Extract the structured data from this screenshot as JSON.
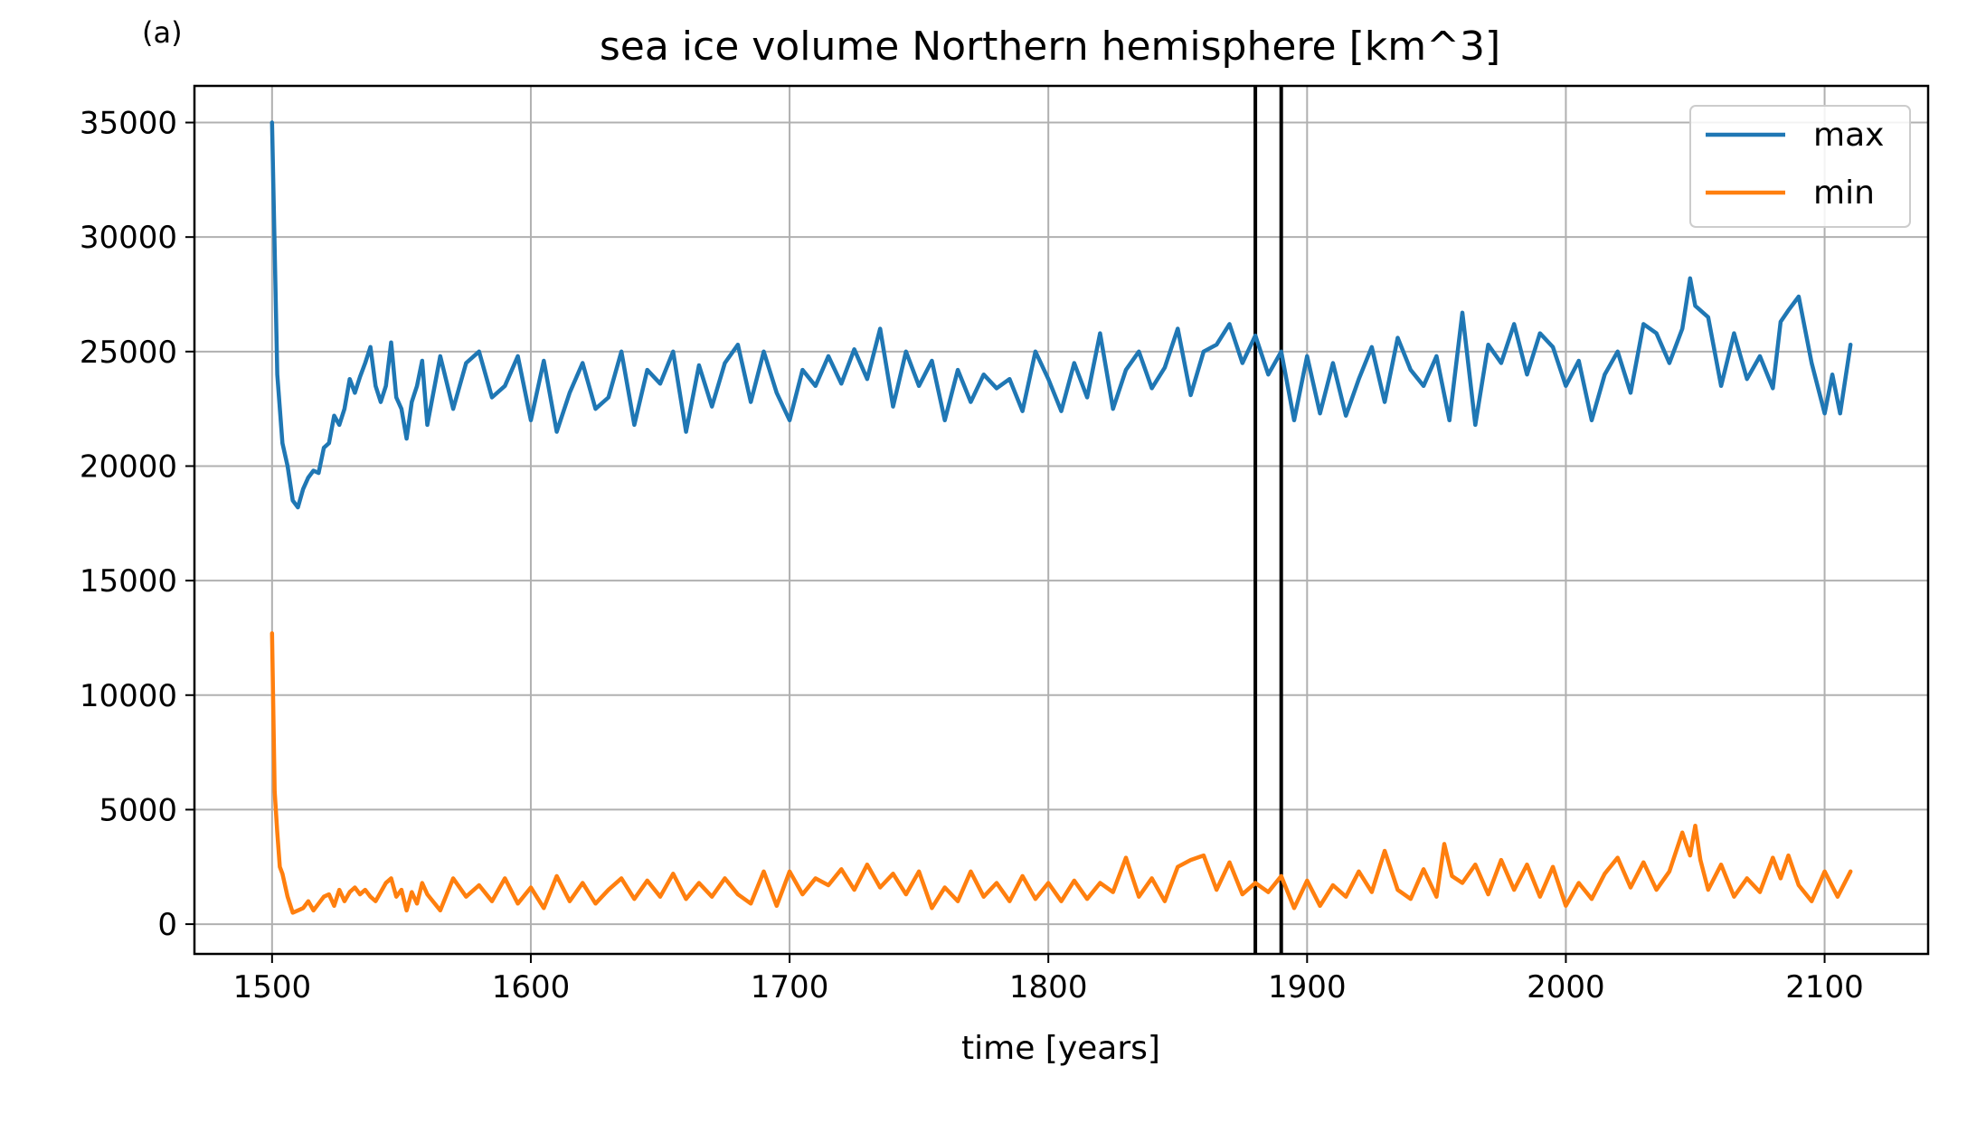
{
  "panel_label": "(a)",
  "chart_data": {
    "type": "line",
    "title": "sea ice volume Northern hemisphere [km^3]",
    "xlabel": "time [years]",
    "ylabel": "",
    "xlim": [
      1470,
      2140
    ],
    "ylim": [
      -1300,
      36600
    ],
    "xticks": [
      1500,
      1600,
      1700,
      1800,
      1900,
      2000,
      2100
    ],
    "yticks": [
      0,
      5000,
      10000,
      15000,
      20000,
      25000,
      30000,
      35000
    ],
    "grid": true,
    "legend_position": "top-right",
    "vlines": [
      1880,
      1890
    ],
    "vline_color": "#000000",
    "series": [
      {
        "name": "max",
        "color": "#1f77b4",
        "x": [
          1500,
          1502,
          1504,
          1506,
          1508,
          1510,
          1512,
          1514,
          1516,
          1518,
          1520,
          1522,
          1524,
          1526,
          1528,
          1530,
          1532,
          1534,
          1536,
          1538,
          1540,
          1542,
          1544,
          1546,
          1548,
          1550,
          1552,
          1554,
          1556,
          1558,
          1560,
          1565,
          1570,
          1575,
          1580,
          1585,
          1590,
          1595,
          1600,
          1605,
          1610,
          1615,
          1620,
          1625,
          1630,
          1635,
          1640,
          1645,
          1650,
          1655,
          1660,
          1665,
          1670,
          1675,
          1680,
          1685,
          1690,
          1695,
          1700,
          1705,
          1710,
          1715,
          1720,
          1725,
          1730,
          1735,
          1740,
          1745,
          1750,
          1755,
          1760,
          1765,
          1770,
          1775,
          1780,
          1785,
          1790,
          1795,
          1800,
          1805,
          1810,
          1815,
          1820,
          1825,
          1830,
          1835,
          1840,
          1845,
          1850,
          1855,
          1860,
          1865,
          1870,
          1875,
          1880,
          1885,
          1890,
          1895,
          1900,
          1905,
          1910,
          1915,
          1920,
          1925,
          1930,
          1935,
          1940,
          1945,
          1950,
          1955,
          1960,
          1965,
          1970,
          1975,
          1980,
          1985,
          1990,
          1995,
          2000,
          2005,
          2010,
          2015,
          2020,
          2025,
          2030,
          2035,
          2040,
          2045,
          2048,
          2050,
          2055,
          2060,
          2065,
          2070,
          2075,
          2080,
          2083,
          2086,
          2090,
          2095,
          2100,
          2103,
          2106,
          2110
        ],
        "values": [
          35000,
          24000,
          21000,
          20000,
          18500,
          18200,
          19000,
          19500,
          19800,
          19700,
          20800,
          21000,
          22200,
          21800,
          22500,
          23800,
          23200,
          23900,
          24500,
          25200,
          23500,
          22800,
          23500,
          25400,
          23000,
          22500,
          21200,
          22800,
          23500,
          24600,
          21800,
          24800,
          22500,
          24500,
          25000,
          23000,
          23500,
          24800,
          22000,
          24600,
          21500,
          23200,
          24500,
          22500,
          23000,
          25000,
          21800,
          24200,
          23600,
          25000,
          21500,
          24400,
          22600,
          24500,
          25300,
          22800,
          25000,
          23200,
          22000,
          24200,
          23500,
          24800,
          23600,
          25100,
          23800,
          26000,
          22600,
          25000,
          23500,
          24600,
          22000,
          24200,
          22800,
          24000,
          23400,
          23800,
          22400,
          25000,
          23800,
          22400,
          24500,
          23000,
          25800,
          22500,
          24200,
          25000,
          23400,
          24300,
          26000,
          23100,
          25000,
          25300,
          26200,
          24500,
          25700,
          24000,
          25000,
          22000,
          24800,
          22300,
          24500,
          22200,
          23800,
          25200,
          22800,
          25600,
          24200,
          23500,
          24800,
          22000,
          26700,
          21800,
          25300,
          24500,
          26200,
          24000,
          25800,
          25200,
          23500,
          24600,
          22000,
          24000,
          25000,
          23200,
          26200,
          25800,
          24500,
          26000,
          28200,
          27000,
          26500,
          23500,
          25800,
          23800,
          24800,
          23400,
          26300,
          26800,
          27400,
          24500,
          22300,
          24000,
          22300,
          25300
        ]
      },
      {
        "name": "min",
        "color": "#ff7f0e",
        "x": [
          1500,
          1501,
          1502,
          1503,
          1504,
          1506,
          1508,
          1510,
          1512,
          1514,
          1516,
          1518,
          1520,
          1522,
          1524,
          1526,
          1528,
          1530,
          1532,
          1534,
          1536,
          1538,
          1540,
          1542,
          1544,
          1546,
          1548,
          1550,
          1552,
          1554,
          1556,
          1558,
          1560,
          1565,
          1570,
          1575,
          1580,
          1585,
          1590,
          1595,
          1600,
          1605,
          1610,
          1615,
          1620,
          1625,
          1630,
          1635,
          1640,
          1645,
          1650,
          1655,
          1660,
          1665,
          1670,
          1675,
          1680,
          1685,
          1690,
          1695,
          1700,
          1705,
          1710,
          1715,
          1720,
          1725,
          1730,
          1735,
          1740,
          1745,
          1750,
          1755,
          1760,
          1765,
          1770,
          1775,
          1780,
          1785,
          1790,
          1795,
          1800,
          1805,
          1810,
          1815,
          1820,
          1825,
          1830,
          1835,
          1840,
          1845,
          1850,
          1855,
          1860,
          1865,
          1870,
          1875,
          1880,
          1885,
          1890,
          1895,
          1900,
          1905,
          1910,
          1915,
          1920,
          1925,
          1930,
          1935,
          1940,
          1945,
          1950,
          1953,
          1956,
          1960,
          1965,
          1970,
          1975,
          1980,
          1985,
          1990,
          1995,
          2000,
          2005,
          2010,
          2015,
          2020,
          2025,
          2030,
          2035,
          2040,
          2045,
          2048,
          2050,
          2052,
          2055,
          2060,
          2065,
          2070,
          2075,
          2080,
          2083,
          2086,
          2090,
          2095,
          2100,
          2105,
          2110
        ],
        "values": [
          12700,
          5800,
          4000,
          2500,
          2200,
          1200,
          500,
          600,
          700,
          1000,
          600,
          900,
          1200,
          1300,
          800,
          1500,
          1000,
          1400,
          1600,
          1300,
          1500,
          1200,
          1000,
          1400,
          1800,
          2000,
          1200,
          1500,
          600,
          1400,
          900,
          1800,
          1300,
          600,
          2000,
          1200,
          1700,
          1000,
          2000,
          900,
          1600,
          700,
          2100,
          1000,
          1800,
          900,
          1500,
          2000,
          1100,
          1900,
          1200,
          2200,
          1100,
          1800,
          1200,
          2000,
          1300,
          900,
          2300,
          800,
          2300,
          1300,
          2000,
          1700,
          2400,
          1500,
          2600,
          1600,
          2200,
          1300,
          2300,
          700,
          1600,
          1000,
          2300,
          1200,
          1800,
          1000,
          2100,
          1100,
          1800,
          1000,
          1900,
          1100,
          1800,
          1400,
          2900,
          1200,
          2000,
          1000,
          2500,
          2800,
          3000,
          1500,
          2700,
          1300,
          1800,
          1400,
          2100,
          700,
          1900,
          800,
          1700,
          1200,
          2300,
          1400,
          3200,
          1500,
          1100,
          2400,
          1200,
          3500,
          2100,
          1800,
          2600,
          1300,
          2800,
          1500,
          2600,
          1200,
          2500,
          800,
          1800,
          1100,
          2200,
          2900,
          1600,
          2700,
          1500,
          2300,
          4000,
          3000,
          4300,
          2800,
          1500,
          2600,
          1200,
          2000,
          1400,
          2900,
          2000,
          3000,
          1700,
          1000,
          2300,
          1200,
          2300
        ]
      }
    ]
  }
}
